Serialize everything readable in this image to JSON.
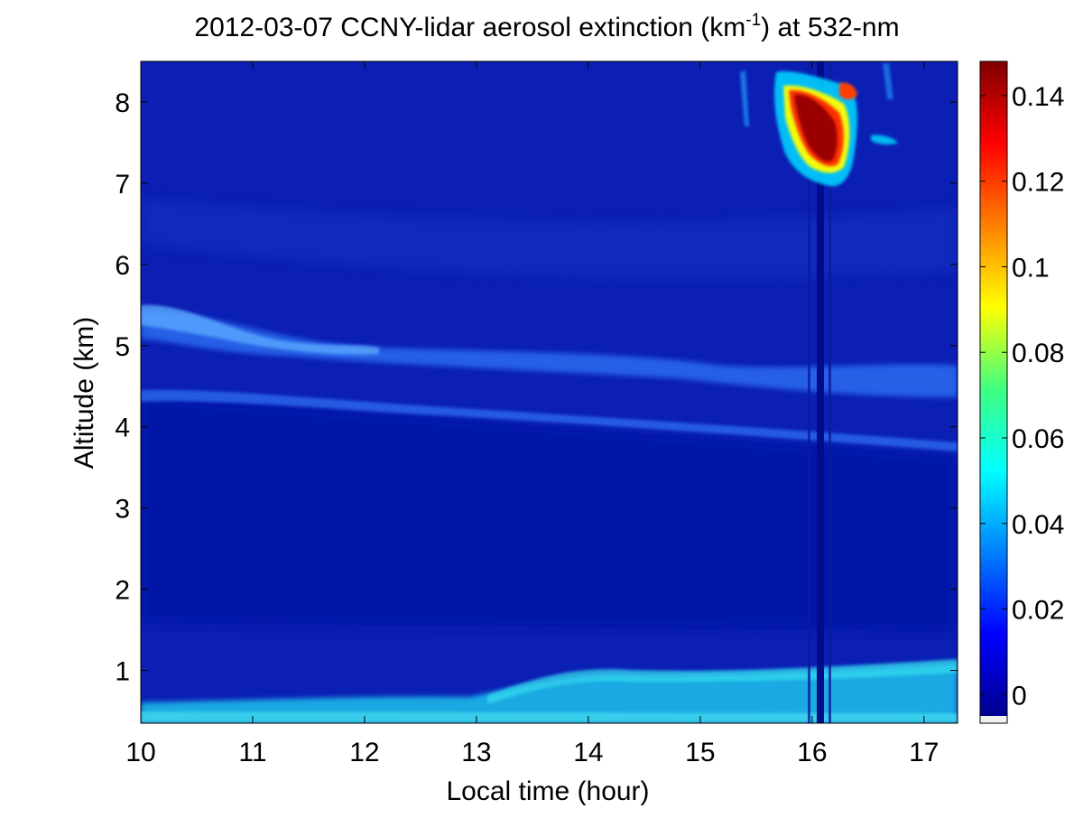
{
  "chart_data": {
    "type": "heatmap",
    "title_text": "2012-03-07 CCNY-lidar aerosol extinction (km",
    "title_sup": "-1",
    "title_tail": ") at 532-nm",
    "xlabel": "Local time (hour)",
    "ylabel": "Altitude (km)",
    "xlim": [
      10.0,
      17.3
    ],
    "ylim": [
      0.35,
      8.5
    ],
    "xticks": [
      10,
      11,
      12,
      13,
      14,
      15,
      16,
      17
    ],
    "xtick_labels": [
      "10",
      "11",
      "12",
      "13",
      "14",
      "15",
      "16",
      "17"
    ],
    "yticks": [
      1,
      2,
      3,
      4,
      5,
      6,
      7,
      8
    ],
    "ytick_labels": [
      "1",
      "2",
      "3",
      "4",
      "5",
      "6",
      "7",
      "8"
    ],
    "colorbar": {
      "range": [
        -0.005,
        0.148
      ],
      "ticks": [
        0,
        0.02,
        0.04,
        0.06,
        0.08,
        0.1,
        0.12,
        0.14
      ],
      "tick_labels": [
        "0",
        "0.02",
        "0.04",
        "0.06",
        "0.08",
        "0.1",
        "0.12",
        "0.14"
      ],
      "colormap": "jet"
    },
    "features": [
      {
        "name": "boundary layer",
        "altitude_km": [
          0.35,
          1.0
        ],
        "extinction": 0.045
      },
      {
        "name": "elevated aerosol layer",
        "altitude_km": [
          4.5,
          5.5
        ],
        "extinction": 0.03
      },
      {
        "name": "cirrus cloud",
        "time_hour": [
          15.7,
          16.4
        ],
        "altitude_km": [
          7.0,
          8.5
        ],
        "extinction": 0.14
      }
    ],
    "grid": false
  }
}
